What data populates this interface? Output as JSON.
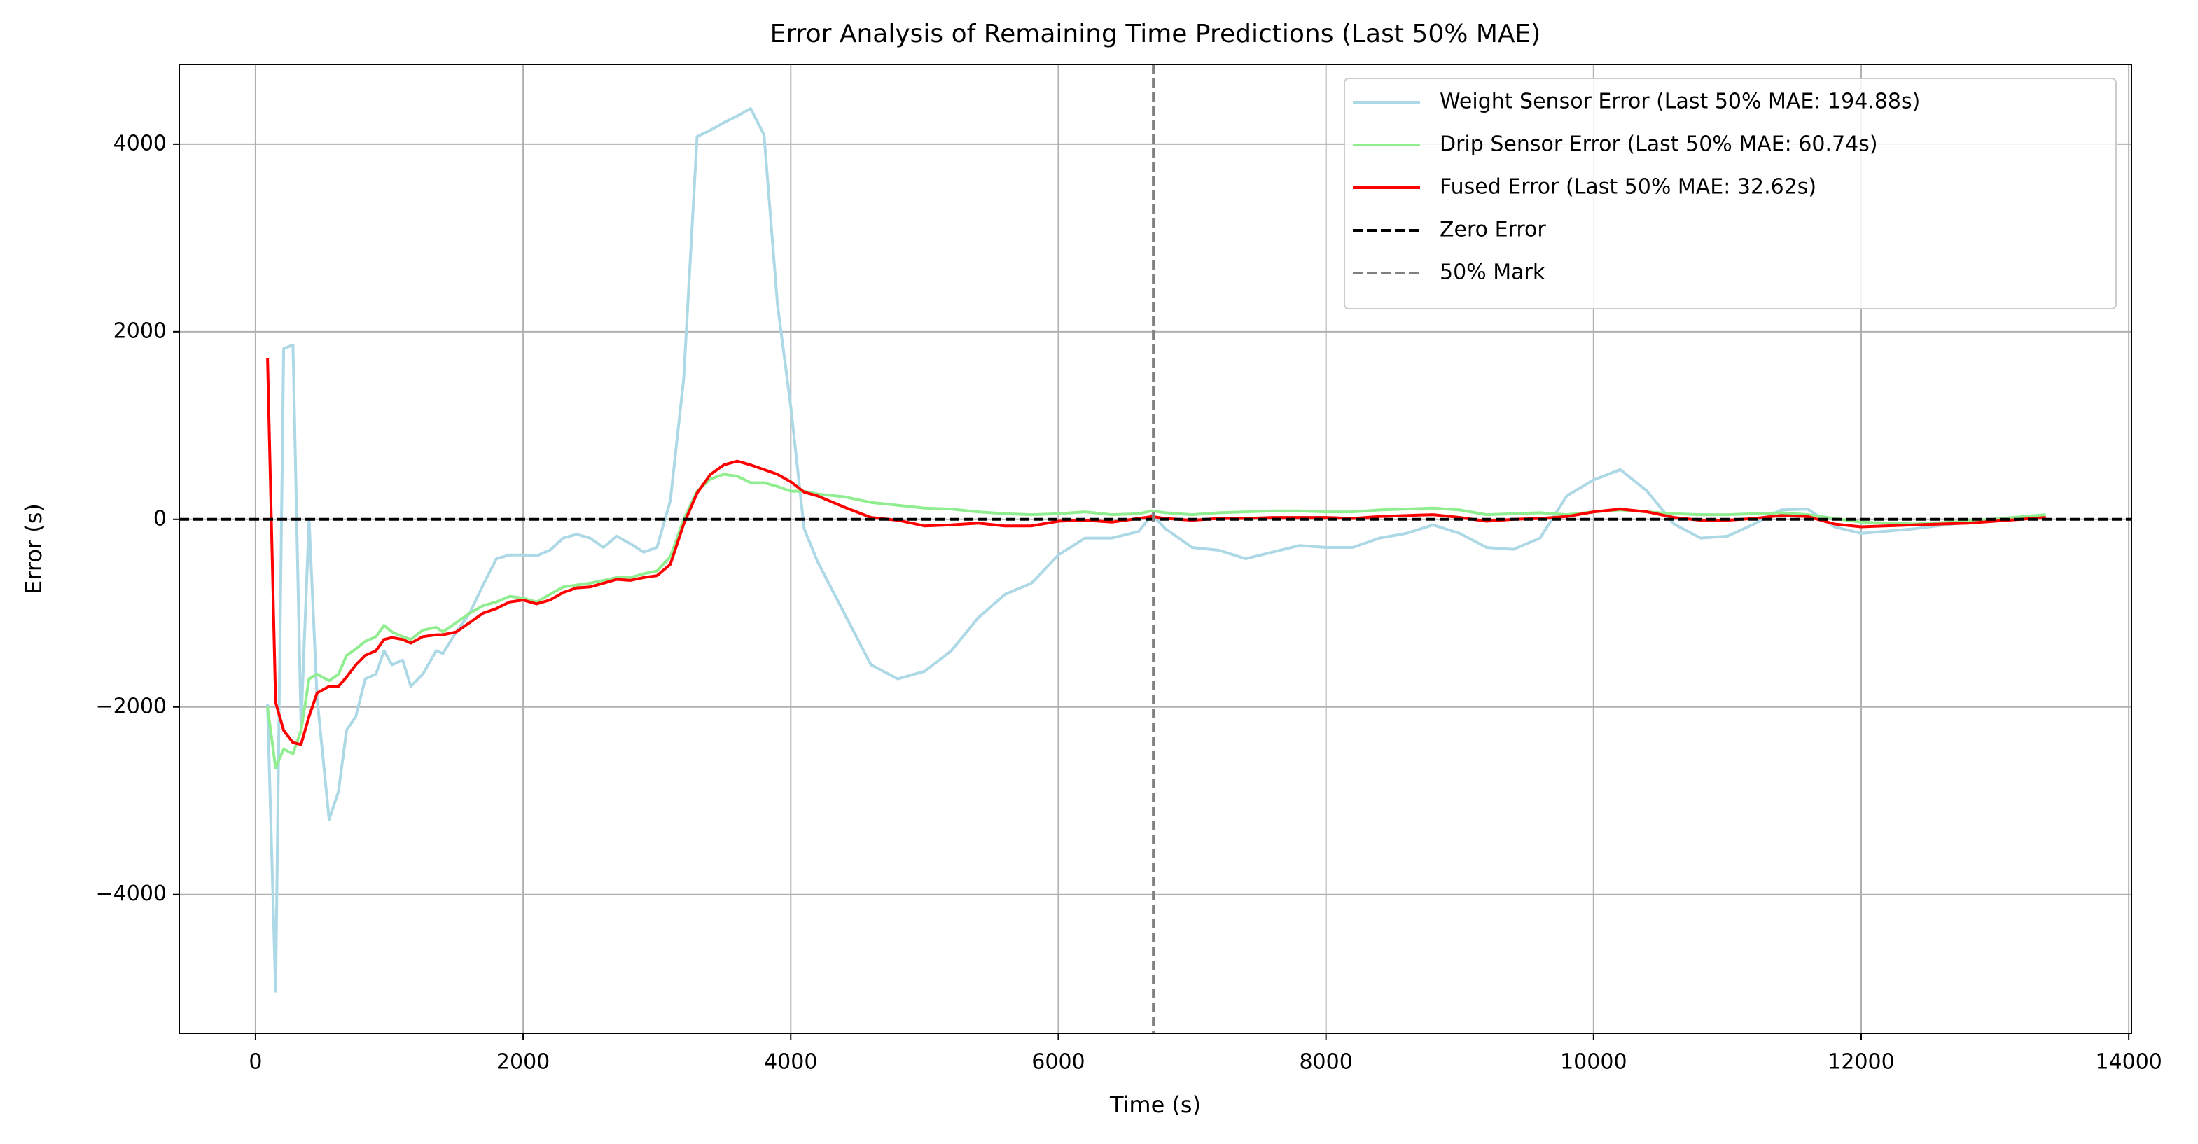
{
  "chart_data": {
    "type": "line",
    "title": "Error Analysis of Remaining Time Predictions (Last 50% MAE)",
    "xlabel": "Time (s)",
    "ylabel": "Error (s)",
    "xlim": [
      -570,
      14020
    ],
    "ylim": [
      -5480,
      4850
    ],
    "xticks": [
      0,
      2000,
      4000,
      6000,
      8000,
      10000,
      12000,
      14000
    ],
    "yticks": [
      {
        "value": -4000,
        "label": "−4000"
      },
      {
        "value": -2000,
        "label": "−2000"
      },
      0,
      2000,
      4000
    ],
    "grid": true,
    "legend": "upper right",
    "x": [
      90,
      150,
      210,
      280,
      340,
      400,
      460,
      550,
      620,
      680,
      750,
      820,
      900,
      960,
      1020,
      1100,
      1160,
      1250,
      1350,
      1400,
      1500,
      1600,
      1700,
      1800,
      1900,
      2000,
      2100,
      2200,
      2300,
      2400,
      2500,
      2600,
      2700,
      2800,
      2900,
      3000,
      3100,
      3200,
      3300,
      3400,
      3500,
      3600,
      3700,
      3800,
      3900,
      4000,
      4100,
      4200,
      4400,
      4600,
      4800,
      5000,
      5200,
      5400,
      5600,
      5800,
      6000,
      6200,
      6400,
      6600,
      6700,
      6800,
      7000,
      7200,
      7400,
      7600,
      7800,
      8000,
      8200,
      8400,
      8600,
      8800,
      9000,
      9200,
      9400,
      9600,
      9800,
      10000,
      10200,
      10400,
      10600,
      10800,
      11000,
      11200,
      11400,
      11600,
      11800,
      12000,
      12400,
      12800,
      13380
    ],
    "series": [
      {
        "name": "Weight Sensor Error (Last 50% MAE: 194.88s)",
        "color": "#add8e6",
        "values": [
          -1970,
          -5030,
          1820,
          1860,
          -2200,
          0,
          -1900,
          -3200,
          -2900,
          -2250,
          -2100,
          -1700,
          -1650,
          -1400,
          -1550,
          -1500,
          -1780,
          -1650,
          -1400,
          -1430,
          -1200,
          -1000,
          -700,
          -420,
          -380,
          -380,
          -390,
          -330,
          -200,
          -160,
          -200,
          -300,
          -180,
          -260,
          -350,
          -300,
          200,
          1500,
          4080,
          4150,
          4230,
          4300,
          4380,
          4100,
          2300,
          1200,
          -100,
          -450,
          -1000,
          -1550,
          -1700,
          -1620,
          -1400,
          -1050,
          -800,
          -680,
          -380,
          -200,
          -200,
          -130,
          50,
          -100,
          -300,
          -330,
          -420,
          -350,
          -280,
          -300,
          -300,
          -200,
          -150,
          -60,
          -150,
          -300,
          -320,
          -200,
          250,
          420,
          530,
          300,
          -50,
          -200,
          -180,
          -50,
          100,
          110,
          -80,
          -150,
          -100,
          -30,
          30
        ]
      },
      {
        "name": "Drip Sensor Error (Last 50% MAE: 60.74s)",
        "color": "#90ee90",
        "values": [
          -2000,
          -2650,
          -2450,
          -2500,
          -2250,
          -1700,
          -1650,
          -1720,
          -1650,
          -1450,
          -1380,
          -1300,
          -1250,
          -1130,
          -1200,
          -1250,
          -1280,
          -1180,
          -1150,
          -1200,
          -1100,
          -1000,
          -920,
          -880,
          -820,
          -840,
          -880,
          -800,
          -720,
          -700,
          -680,
          -650,
          -620,
          -620,
          -580,
          -550,
          -400,
          0,
          300,
          430,
          480,
          460,
          390,
          390,
          350,
          300,
          300,
          270,
          240,
          180,
          150,
          120,
          110,
          80,
          60,
          50,
          60,
          80,
          50,
          60,
          90,
          70,
          50,
          70,
          80,
          90,
          90,
          80,
          80,
          100,
          110,
          120,
          100,
          50,
          60,
          70,
          50,
          80,
          100,
          80,
          60,
          50,
          50,
          60,
          70,
          50,
          10,
          -30,
          -50,
          -20,
          50
        ]
      },
      {
        "name": "Fused Error (Last 50% MAE: 32.62s)",
        "color": "#ff0000",
        "values": [
          1720,
          -1950,
          -2250,
          -2380,
          -2400,
          -2100,
          -1850,
          -1780,
          -1780,
          -1680,
          -1550,
          -1450,
          -1400,
          -1280,
          -1260,
          -1280,
          -1320,
          -1250,
          -1230,
          -1230,
          -1200,
          -1100,
          -1000,
          -950,
          -880,
          -860,
          -900,
          -860,
          -780,
          -730,
          -720,
          -680,
          -640,
          -650,
          -620,
          -600,
          -480,
          -50,
          280,
          480,
          580,
          620,
          580,
          530,
          480,
          400,
          290,
          250,
          130,
          20,
          -10,
          -70,
          -60,
          -40,
          -70,
          -70,
          -20,
          -10,
          -30,
          10,
          30,
          10,
          -10,
          10,
          10,
          20,
          20,
          20,
          10,
          30,
          40,
          50,
          20,
          -20,
          0,
          10,
          30,
          80,
          110,
          80,
          20,
          -10,
          -10,
          10,
          40,
          30,
          -50,
          -80,
          -60,
          -40,
          20
        ]
      }
    ],
    "ref_lines": [
      {
        "name": "Zero Error",
        "axis": "y",
        "value": 0,
        "color": "#000000"
      },
      {
        "name": "50% Mark",
        "axis": "x",
        "value": 6710,
        "color": "#808080"
      }
    ]
  }
}
